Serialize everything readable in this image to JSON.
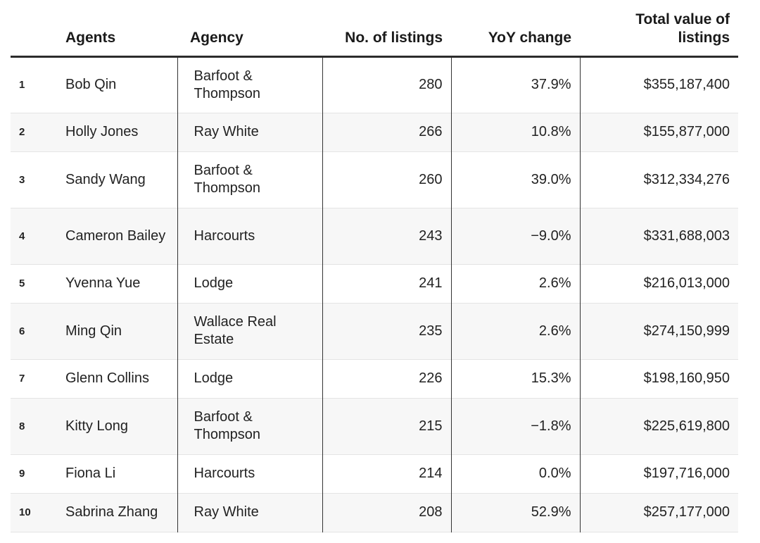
{
  "chart_data": {
    "type": "table",
    "headers": {
      "agents": "Agents",
      "agency": "Agency",
      "listings": "No. of listings",
      "yoy": "YoY change",
      "total": "Total value of listings"
    },
    "rows": [
      {
        "rank": "1",
        "agent": "Bob Qin",
        "agency": "Barfoot & Thompson",
        "listings": "280",
        "yoy": "37.9%",
        "total": "$355,187,400",
        "tall": true
      },
      {
        "rank": "2",
        "agent": "Holly Jones",
        "agency": "Ray White",
        "listings": "266",
        "yoy": "10.8%",
        "total": "$155,877,000",
        "tall": false
      },
      {
        "rank": "3",
        "agent": "Sandy Wang",
        "agency": "Barfoot & Thompson",
        "listings": "260",
        "yoy": "39.0%",
        "total": "$312,334,276",
        "tall": true
      },
      {
        "rank": "4",
        "agent": "Cameron Bailey",
        "agency": "Harcourts",
        "listings": "243",
        "yoy": "−9.0%",
        "total": "$331,688,003",
        "tall": true
      },
      {
        "rank": "5",
        "agent": "Yvenna Yue",
        "agency": "Lodge",
        "listings": "241",
        "yoy": "2.6%",
        "total": "$216,013,000",
        "tall": false
      },
      {
        "rank": "6",
        "agent": "Ming Qin",
        "agency": "Wallace Real Estate",
        "listings": "235",
        "yoy": "2.6%",
        "total": "$274,150,999",
        "tall": true
      },
      {
        "rank": "7",
        "agent": "Glenn Collins",
        "agency": "Lodge",
        "listings": "226",
        "yoy": "15.3%",
        "total": "$198,160,950",
        "tall": false
      },
      {
        "rank": "8",
        "agent": "Kitty Long",
        "agency": "Barfoot & Thompson",
        "listings": "215",
        "yoy": "−1.8%",
        "total": "$225,619,800",
        "tall": true
      },
      {
        "rank": "9",
        "agent": "Fiona Li",
        "agency": "Harcourts",
        "listings": "214",
        "yoy": "0.0%",
        "total": "$197,716,000",
        "tall": false
      },
      {
        "rank": "10",
        "agent": "Sabrina Zhang",
        "agency": "Ray White",
        "listings": "208",
        "yoy": "52.9%",
        "total": "$257,177,000",
        "tall": false
      }
    ]
  }
}
